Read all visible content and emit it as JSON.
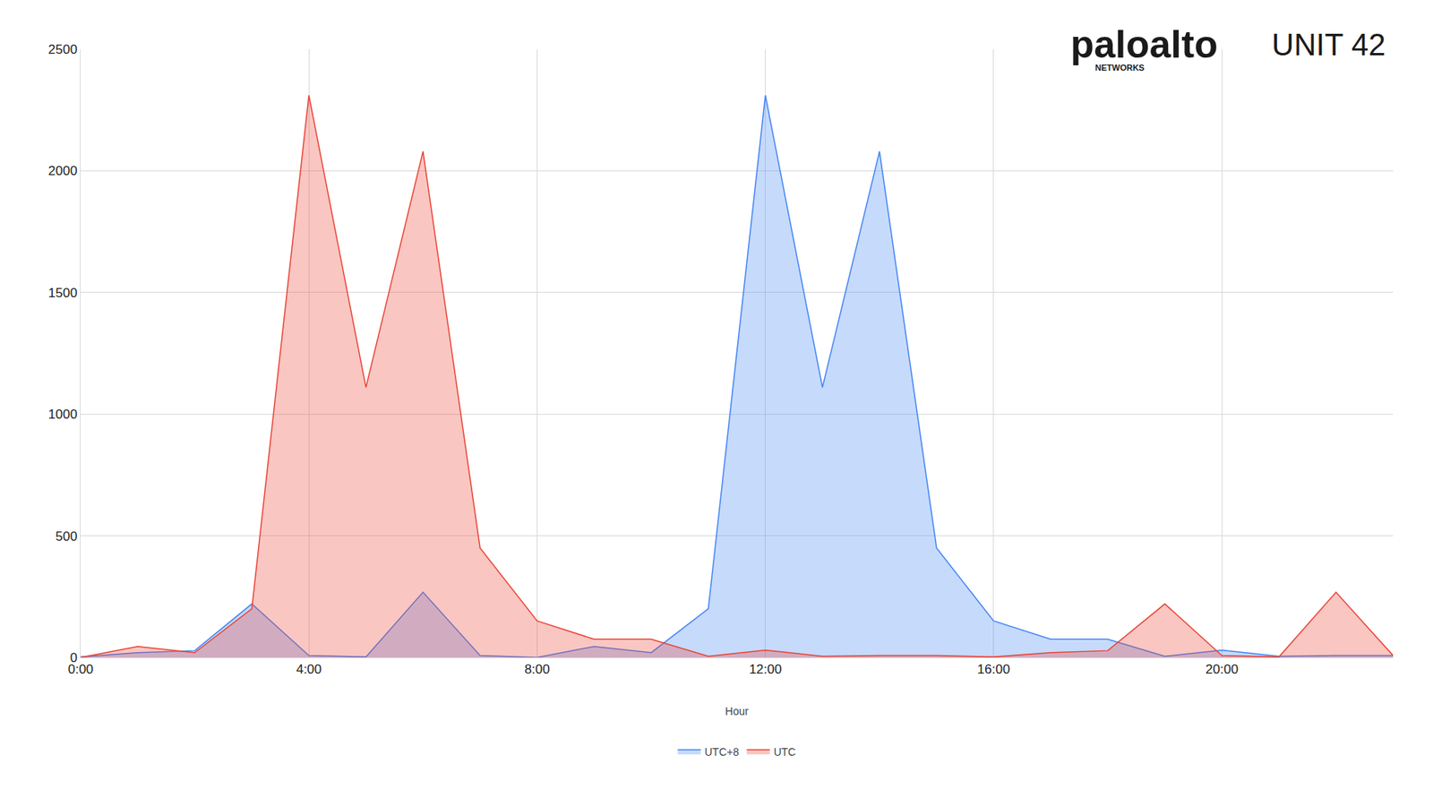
{
  "chart_data": {
    "type": "area",
    "x_label": "Hour",
    "annotations": [
      "paloalto",
      "NETWORKS",
      "UNIT 42"
    ],
    "x": [
      0,
      1,
      2,
      3,
      4,
      5,
      6,
      7,
      8,
      9,
      10,
      11,
      12,
      13,
      14,
      15,
      16,
      17,
      18,
      19,
      20,
      21,
      22,
      23
    ],
    "series": [
      {
        "name": "UTC+8",
        "color": "#4285f4",
        "values": [
          2,
          20,
          28,
          220,
          8,
          2,
          268,
          8,
          0,
          45,
          20,
          200,
          2310,
          1110,
          2080,
          450,
          150,
          75,
          75,
          5,
          30,
          5,
          8,
          8
        ]
      },
      {
        "name": "UTC",
        "color": "#ea4335",
        "values": [
          0,
          45,
          20,
          200,
          2310,
          1110,
          2080,
          450,
          150,
          75,
          75,
          5,
          30,
          5,
          8,
          8,
          2,
          20,
          28,
          220,
          8,
          2,
          268,
          8
        ]
      }
    ],
    "xlim": [
      0,
      23
    ],
    "xticks": [
      {
        "value": 0,
        "label": "0:00"
      },
      {
        "value": 4,
        "label": "4:00"
      },
      {
        "value": 8,
        "label": "8:00"
      },
      {
        "value": 12,
        "label": "12:00"
      },
      {
        "value": 16,
        "label": "16:00"
      },
      {
        "value": 20,
        "label": "20:00"
      }
    ],
    "ylim": [
      0,
      2500
    ],
    "yticks": [
      0,
      500,
      1000,
      1500,
      2000,
      2500
    ],
    "grid": true,
    "legend": "bottom"
  }
}
